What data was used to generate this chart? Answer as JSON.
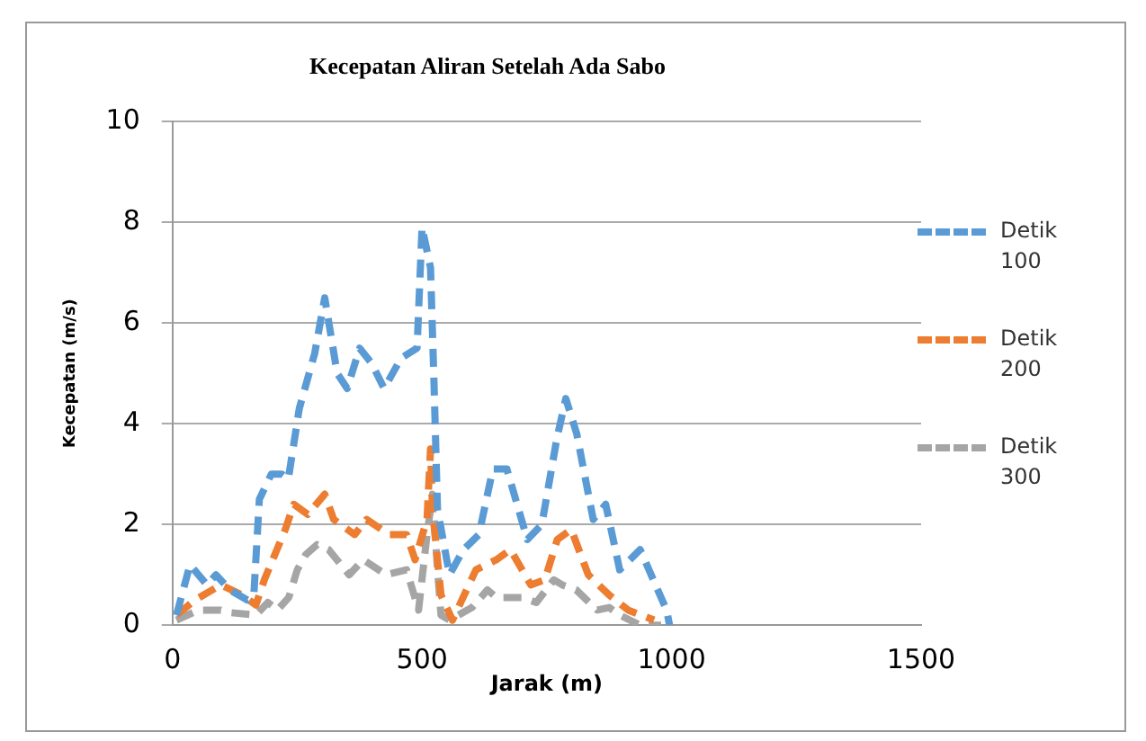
{
  "chart_data": {
    "type": "line",
    "title": "Kecepatan Aliran Setelah Ada Sabo",
    "xlabel": "Jarak (m)",
    "ylabel": "Kecepatan (m/s)",
    "xlim": [
      0,
      1500
    ],
    "xticks": [
      0,
      500,
      1000,
      1500
    ],
    "ylim": [
      0,
      10
    ],
    "yticks": [
      0,
      2,
      4,
      6,
      8,
      10
    ],
    "grid": "y",
    "legend": "right",
    "marker": "none",
    "line_style": "dashed",
    "series": [
      {
        "name": "Detik 100",
        "color": "#5b9bd5",
        "x": [
          8,
          35,
          69,
          87,
          115,
          150,
          163,
          174,
          198,
          219,
          232,
          254,
          285,
          305,
          330,
          350,
          375,
          399,
          424,
          458,
          490,
          500,
          517,
          524,
          531,
          555,
          583,
          614,
          642,
          670,
          711,
          740,
          770,
          788,
          810,
          843,
          868,
          896,
          937,
          990,
          996
        ],
        "values": [
          0.2,
          1.2,
          0.8,
          1.0,
          0.7,
          0.5,
          0.6,
          2.5,
          3.0,
          3.0,
          2.9,
          4.3,
          5.4,
          6.5,
          5.0,
          4.7,
          5.5,
          5.2,
          4.7,
          5.3,
          5.5,
          7.9,
          7.1,
          4.8,
          2.3,
          1.0,
          1.5,
          1.8,
          3.1,
          3.1,
          1.7,
          2.0,
          3.7,
          4.5,
          3.8,
          2.1,
          2.4,
          1.1,
          1.5,
          0.3,
          0
        ]
      },
      {
        "name": "Detik 200",
        "color": "#ed7d31",
        "x": [
          8,
          45,
          97,
          139,
          167,
          184,
          226,
          243,
          271,
          305,
          323,
          365,
          389,
          434,
          469,
          486,
          510,
          517,
          521,
          538,
          561,
          608,
          649,
          677,
          718,
          746,
          771,
          799,
          833,
          875,
          913,
          965
        ],
        "values": [
          0.2,
          0.5,
          0.8,
          0.6,
          0.4,
          0.9,
          1.9,
          2.4,
          2.2,
          2.6,
          2.1,
          1.8,
          2.1,
          1.8,
          1.8,
          1.3,
          2.1,
          3.5,
          2.3,
          0.6,
          0.1,
          1.1,
          1.3,
          1.5,
          0.8,
          0.9,
          1.7,
          1.9,
          1.0,
          0.6,
          0.3,
          0.1
        ]
      },
      {
        "name": "Detik 300",
        "color": "#a5a5a5",
        "x": [
          8,
          52,
          97,
          115,
          167,
          191,
          210,
          233,
          250,
          267,
          290,
          313,
          354,
          382,
          428,
          469,
          493,
          510,
          521,
          531,
          538,
          555,
          600,
          631,
          649,
          701,
          729,
          764,
          781,
          809,
          851,
          875,
          896,
          937,
          979
        ],
        "values": [
          0.1,
          0.3,
          0.3,
          0.25,
          0.2,
          0.45,
          0.3,
          0.55,
          1.1,
          1.4,
          1.6,
          1.5,
          1.0,
          1.3,
          1.0,
          1.1,
          0.3,
          1.8,
          2.6,
          1.1,
          0.2,
          0.1,
          0.35,
          0.7,
          0.55,
          0.55,
          0.45,
          0.9,
          0.8,
          0.7,
          0.3,
          0.35,
          0.2,
          0,
          0
        ]
      }
    ]
  }
}
